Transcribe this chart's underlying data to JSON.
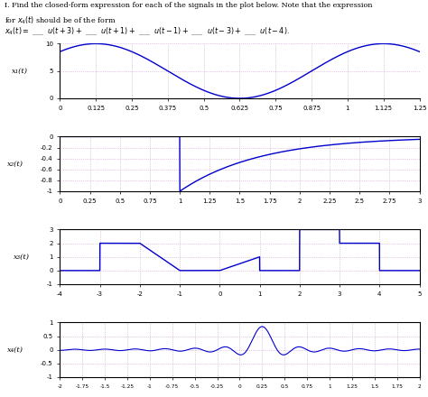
{
  "line_color": "#0000cc",
  "grid_color": "#cc99cc",
  "plot1": {
    "ylabel": "x₁(t)",
    "xlim": [
      0,
      1.25
    ],
    "ylim": [
      0,
      10
    ],
    "xticks": [
      0,
      0.125,
      0.25,
      0.375,
      0.5,
      0.625,
      0.75,
      0.875,
      1,
      1.125,
      1.25
    ],
    "yticks": [
      0,
      5,
      10
    ]
  },
  "plot2": {
    "ylabel": "x₂(t)",
    "xlim": [
      0,
      3
    ],
    "ylim": [
      -1,
      0
    ],
    "xticks": [
      0,
      0.25,
      0.5,
      0.75,
      1,
      1.25,
      1.5,
      1.75,
      2,
      2.25,
      2.5,
      2.75,
      3
    ],
    "yticks": [
      0,
      -0.2,
      -0.4,
      -0.6,
      -0.8,
      -1
    ]
  },
  "plot3": {
    "ylabel": "x₃(t)",
    "xlim": [
      -4,
      5
    ],
    "ylim": [
      -1,
      3
    ],
    "xticks": [
      -4,
      -3,
      -2,
      -1,
      0,
      1,
      2,
      3,
      4,
      5
    ],
    "yticks": [
      -1,
      0,
      1,
      2,
      3
    ]
  },
  "plot4": {
    "ylabel": "x₄(t)",
    "xlim": [
      -2,
      2
    ],
    "ylim": [
      -1,
      1
    ],
    "xticks": [
      -2,
      -1.75,
      -1.5,
      -1.25,
      -1,
      -0.75,
      -0.5,
      -0.25,
      0,
      0.25,
      0.5,
      0.75,
      1,
      1.25,
      1.5,
      1.75,
      2
    ],
    "yticks": [
      -1,
      -0.5,
      0,
      0.5,
      1
    ]
  }
}
